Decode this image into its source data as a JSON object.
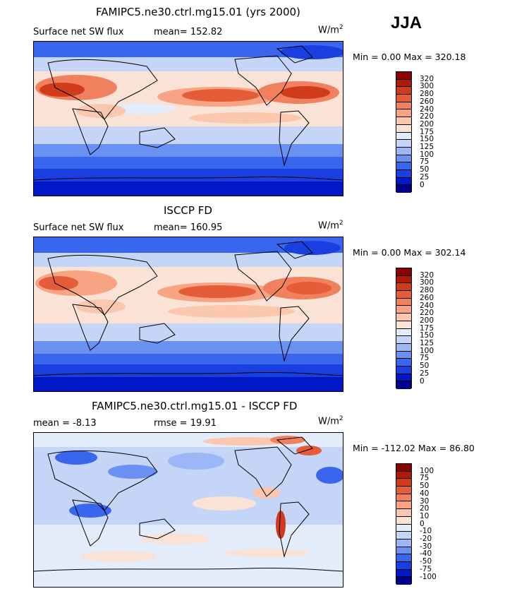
{
  "season": "JJA",
  "units": {
    "base": "W/m",
    "exp": "2"
  },
  "palettes": {
    "abs": [
      "#00008b",
      "#0018c8",
      "#1a3fe0",
      "#3a66ee",
      "#6a91f2",
      "#9bb7f5",
      "#c4d5f8",
      "#e2ecfb",
      "#fbe2d6",
      "#fbc7ae",
      "#f8a383",
      "#f0805e",
      "#e45c38",
      "#cf3b1b",
      "#b01a08",
      "#8a0303"
    ],
    "diff": [
      "#00008b",
      "#0018c8",
      "#1a3fe0",
      "#3a66ee",
      "#6a91f2",
      "#9bb7f5",
      "#c4d5f8",
      "#e2ecfb",
      "#fbe2d6",
      "#fbc7ae",
      "#f8a383",
      "#f0805e",
      "#e45c38",
      "#cf3b1b",
      "#b01a08",
      "#8a0303"
    ]
  },
  "chart_data": [
    {
      "type": "heatmap",
      "title": "FAMIPC5.ne30.ctrl.mg15.01 (yrs 2000)",
      "variable": "Surface net SW flux",
      "stats_left": "mean= 152.82",
      "minmax": "Min =   0.00 Max = 320.18",
      "min": 0.0,
      "max": 320.18,
      "mean": 152.82,
      "colorbar_levels": [
        "320",
        "300",
        "280",
        "260",
        "240",
        "220",
        "200",
        "175",
        "150",
        "125",
        "100",
        "75",
        "50",
        "25",
        "0"
      ]
    },
    {
      "type": "heatmap",
      "title": "ISCCP FD",
      "variable": "Surface net SW flux",
      "stats_left": "mean= 160.95",
      "minmax": "Min =   0.00 Max = 302.14",
      "min": 0.0,
      "max": 302.14,
      "mean": 160.95,
      "colorbar_levels": [
        "320",
        "300",
        "280",
        "260",
        "240",
        "220",
        "200",
        "175",
        "150",
        "125",
        "100",
        "75",
        "50",
        "25",
        "0"
      ]
    },
    {
      "type": "heatmap",
      "title": "FAMIPC5.ne30.ctrl.mg15.01 - ISCCP FD",
      "variable": "",
      "stats_left": "mean =   -8.13",
      "stats_right": "rmse =   19.91",
      "minmax": "Min = -112.02 Max =  86.80",
      "min": -112.02,
      "max": 86.8,
      "mean": -8.13,
      "rmse": 19.91,
      "colorbar_levels": [
        "100",
        "75",
        "50",
        "40",
        "30",
        "20",
        "10",
        "0",
        "-10",
        "-20",
        "-30",
        "-40",
        "-50",
        "-75",
        "-100"
      ]
    }
  ]
}
